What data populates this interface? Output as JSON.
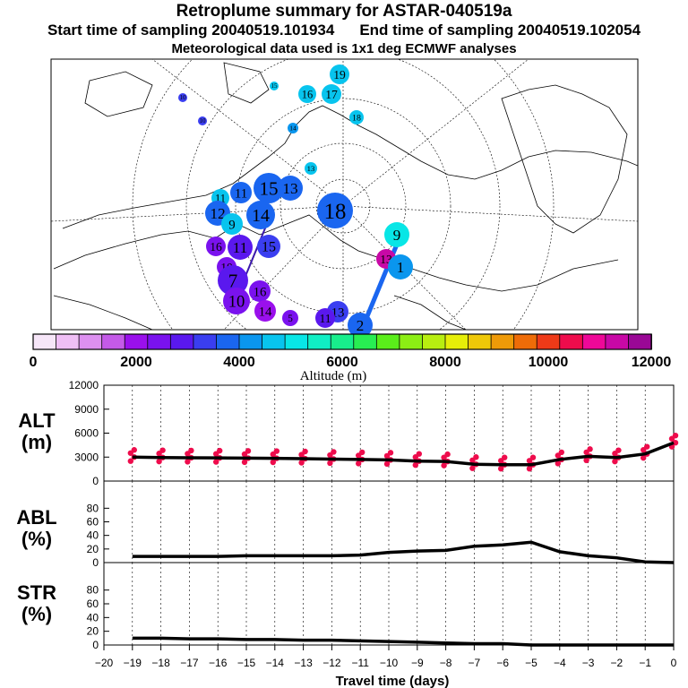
{
  "header": {
    "title": "Retroplume summary for ASTAR-040519a",
    "start_label": "Start time of sampling 20040519.101934",
    "end_label": "End time of sampling 20040519.102054",
    "met_label": "Meteorological data used is 1x1 deg ECMWF analyses"
  },
  "colorbar": {
    "tick_labels": [
      "0",
      "2000",
      "4000",
      "6000",
      "8000",
      "10000",
      "12000"
    ],
    "title": "Altitude (m)",
    "colors": [
      "#f6e6f8",
      "#efbff5",
      "#dd90f0",
      "#c45ae8",
      "#9a10ec",
      "#7a12ee",
      "#5a18ee",
      "#3a3ef0",
      "#1a66f0",
      "#0a96ee",
      "#08c4ee",
      "#08e6e6",
      "#10eec4",
      "#18ee8c",
      "#28ee52",
      "#5aee1a",
      "#8cee14",
      "#b8ee10",
      "#e6ee08",
      "#eec808",
      "#ee9a08",
      "#ee6c08",
      "#ee3a18",
      "#ee0c4c",
      "#ee0898",
      "#c808a6",
      "#9a0896"
    ]
  },
  "map": {
    "labels": [
      {
        "n": "19",
        "c": "#08c4ee",
        "s": 22
      },
      {
        "n": "15",
        "c": "#08c4ee",
        "s": 10
      },
      {
        "n": "16",
        "c": "#08c4ee",
        "s": 20
      },
      {
        "n": "17",
        "c": "#08c4ee",
        "s": 22
      },
      {
        "n": "18",
        "c": "#08c4ee",
        "s": 16
      },
      {
        "n": "14",
        "c": "#0a96ee",
        "s": 12
      },
      {
        "n": "10",
        "c": "#3a3ef0",
        "s": 10
      },
      {
        "n": "10",
        "c": "#3a3ef0",
        "s": 10
      },
      {
        "n": "13",
        "c": "#08c4ee",
        "s": 14
      },
      {
        "n": "11",
        "c": "#1a66f0",
        "s": 24
      },
      {
        "n": "15",
        "c": "#1a66f0",
        "s": 34
      },
      {
        "n": "13",
        "c": "#1a66f0",
        "s": 28
      },
      {
        "n": "11",
        "c": "#08c4ee",
        "s": 20
      },
      {
        "n": "12",
        "c": "#1a66f0",
        "s": 28
      },
      {
        "n": "9",
        "c": "#08c4ee",
        "s": 24
      },
      {
        "n": "14",
        "c": "#1a66f0",
        "s": 32
      },
      {
        "n": "18",
        "c": "#1a66f0",
        "s": 40
      },
      {
        "n": "9",
        "c": "#08e6e6",
        "s": 28
      },
      {
        "n": "16",
        "c": "#7a12ee",
        "s": 22
      },
      {
        "n": "11",
        "c": "#5a18ee",
        "s": 28
      },
      {
        "n": "15",
        "c": "#3a3ef0",
        "s": 26
      },
      {
        "n": "13",
        "c": "#c808a6",
        "s": 22
      },
      {
        "n": "1",
        "c": "#0a96ee",
        "s": 28
      },
      {
        "n": "10",
        "c": "#7a12ee",
        "s": 22
      },
      {
        "n": "7",
        "c": "#5a18ee",
        "s": 34
      },
      {
        "n": "16",
        "c": "#7a12ee",
        "s": 24
      },
      {
        "n": "10",
        "c": "#7a12ee",
        "s": 30
      },
      {
        "n": "14",
        "c": "#9a10ec",
        "s": 24
      },
      {
        "n": "13",
        "c": "#3a3ef0",
        "s": 24
      },
      {
        "n": "11",
        "c": "#5a18ee",
        "s": 22
      },
      {
        "n": "2",
        "c": "#1a66f0",
        "s": 28
      },
      {
        "n": "5",
        "c": "#7a12ee",
        "s": 18
      }
    ]
  },
  "panels": [
    {
      "label_line1": "ALT",
      "label_line2": "(m)"
    },
    {
      "label_line1": "ABL",
      "label_line2": "(%)"
    },
    {
      "label_line1": "STR",
      "label_line2": "(%)"
    }
  ],
  "chart_data": [
    {
      "type": "line",
      "title": "ALT (m)",
      "x": [
        -19,
        -18,
        -17,
        -16,
        -15,
        -14,
        -13,
        -12,
        -11,
        -10,
        -9,
        -8,
        -7,
        -6,
        -5,
        -4,
        -3,
        -2,
        -1,
        0
      ],
      "values": [
        3000,
        2950,
        2920,
        2900,
        2870,
        2850,
        2800,
        2750,
        2700,
        2650,
        2500,
        2450,
        2100,
        2050,
        2050,
        2700,
        3100,
        2950,
        3400,
        4800
      ],
      "ylim": [
        0,
        12000
      ],
      "yticks": [
        "0",
        "3000",
        "6000",
        "9000",
        "12000"
      ],
      "scatter_color": "#ee0c4c"
    },
    {
      "type": "line",
      "title": "ABL (%)",
      "x": [
        -19,
        -18,
        -17,
        -16,
        -15,
        -14,
        -13,
        -12,
        -11,
        -10,
        -9,
        -8,
        -7,
        -6,
        -5,
        -4,
        -3,
        -2,
        -1,
        0
      ],
      "values": [
        9,
        9,
        9,
        9,
        10,
        10,
        10,
        10,
        11,
        15,
        17,
        18,
        24,
        26,
        30,
        16,
        10,
        7,
        1,
        0
      ],
      "ylim": [
        0,
        100
      ],
      "yticks": [
        "0",
        "20",
        "40",
        "60",
        "80"
      ]
    },
    {
      "type": "line",
      "title": "STR (%)",
      "x": [
        -19,
        -18,
        -17,
        -16,
        -15,
        -14,
        -13,
        -12,
        -11,
        -10,
        -9,
        -8,
        -7,
        -6,
        -5,
        -4,
        -3,
        -2,
        -1,
        0
      ],
      "values": [
        10,
        10,
        9,
        9,
        8,
        8,
        7,
        7,
        6,
        5,
        4,
        3,
        2,
        2,
        0,
        0,
        0,
        0,
        0,
        0
      ],
      "ylim": [
        0,
        100
      ],
      "yticks": [
        "0",
        "20",
        "40",
        "60",
        "80"
      ]
    }
  ],
  "axis": {
    "xlabel": "Travel time (days)",
    "xticks": [
      "−20",
      "−19",
      "−18",
      "−17",
      "−16",
      "−15",
      "−14",
      "−13",
      "−12",
      "−11",
      "−10",
      "−9",
      "−8",
      "−7",
      "−6",
      "−5",
      "−4",
      "−3",
      "−2",
      "−1",
      "0"
    ]
  }
}
